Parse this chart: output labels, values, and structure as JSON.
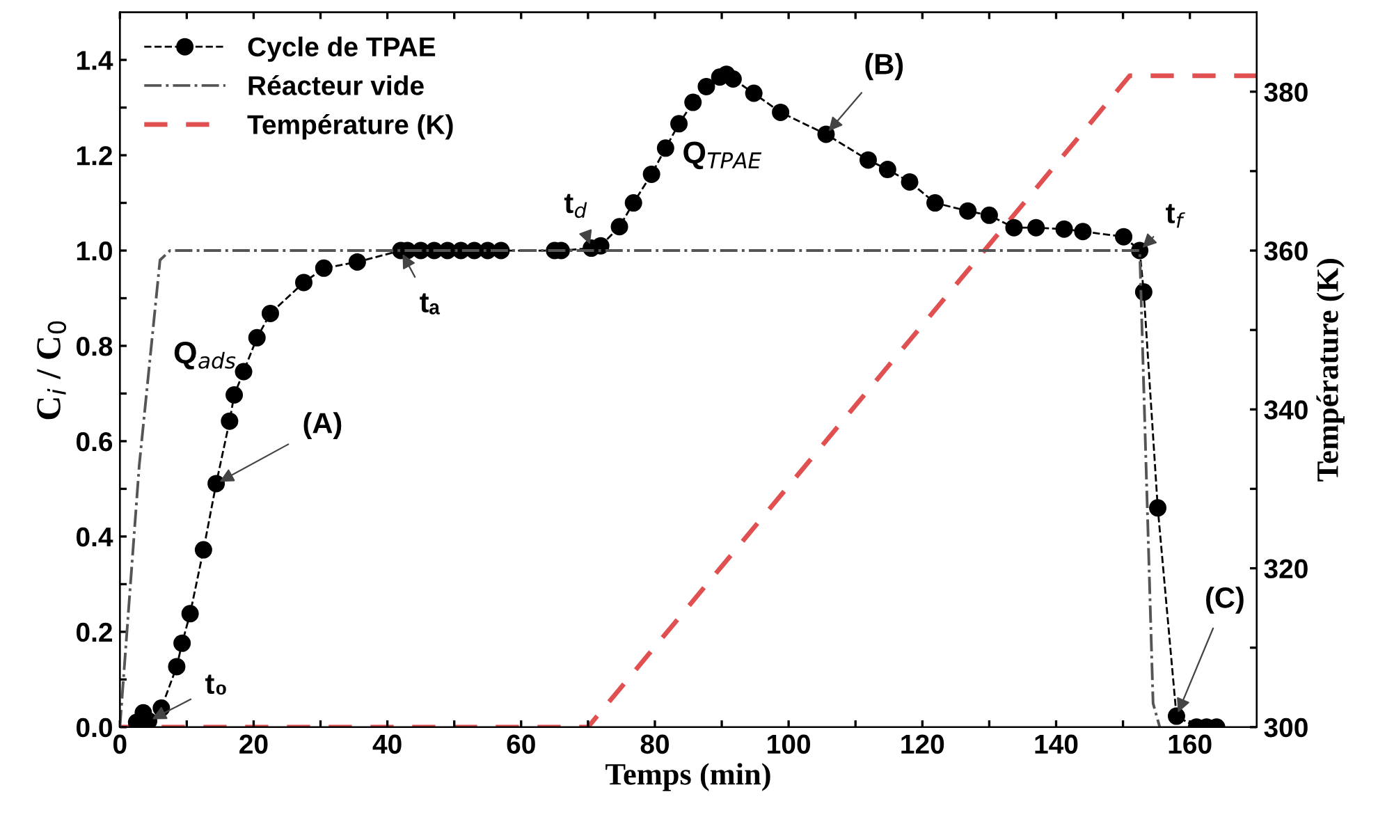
{
  "chart_data": {
    "type": "line",
    "xlabel": "Temps (min)",
    "ylabel": "C$_{i}$ / C$_{0}$",
    "y2label": "Température (K)",
    "xlim": [
      0,
      170
    ],
    "ylim": [
      0,
      1.5
    ],
    "y2lim": [
      300,
      390
    ],
    "xticks": [
      0,
      {
        "value": 10,
        "label": null
      },
      20,
      {
        "value": 30,
        "label": null
      },
      40,
      {
        "value": 50,
        "label": null
      },
      60,
      {
        "value": 70,
        "label": null
      },
      80,
      {
        "value": 90,
        "label": null
      },
      100,
      {
        "value": 110,
        "label": null
      },
      120,
      {
        "value": 130,
        "label": null
      },
      140,
      {
        "value": 150,
        "label": null
      },
      160
    ],
    "yticks": [
      {
        "value": 0,
        "label": "0.0"
      },
      {
        "value": 0.1,
        "label": null
      },
      {
        "value": 0.2,
        "label": "0.2"
      },
      {
        "value": 0.3,
        "label": null
      },
      {
        "value": 0.4,
        "label": "0.4"
      },
      {
        "value": 0.5,
        "label": null
      },
      {
        "value": 0.6,
        "label": "0.6"
      },
      {
        "value": 0.7,
        "label": null
      },
      {
        "value": 0.8,
        "label": "0.8"
      },
      {
        "value": 0.9,
        "label": null
      },
      {
        "value": 1.0,
        "label": "1.0"
      },
      {
        "value": 1.1,
        "label": null
      },
      {
        "value": 1.2,
        "label": "1.2"
      },
      {
        "value": 1.3,
        "label": null
      },
      {
        "value": 1.4,
        "label": "1.4"
      }
    ],
    "y2ticks": [
      300,
      {
        "value": 310,
        "label": null
      },
      320,
      {
        "value": 330,
        "label": null
      },
      340,
      {
        "value": 350,
        "label": null
      },
      360,
      {
        "value": 370,
        "label": null
      },
      380
    ],
    "legend": "top left",
    "grid": false,
    "series": [
      {
        "name": "Cycle de TPAE",
        "color": "#000000",
        "marker": "circle",
        "line_style": "dashed",
        "x": [
          2.5,
          3.5,
          4.3,
          6.2,
          8.5,
          9.3,
          10.5,
          12.5,
          14.4,
          16.4,
          17.1,
          18.5,
          20.5,
          22.5,
          27.5,
          30.5,
          35.5,
          42,
          43,
          45,
          47,
          49,
          51,
          53,
          55,
          57,
          65,
          66,
          70.5,
          71.9,
          74.7,
          76.8,
          79.5,
          81.6,
          83.6,
          85.7,
          87.7,
          89.7,
          90.7,
          91.7,
          94.8,
          98.8,
          105.6,
          111.9,
          114.8,
          118.1,
          121.9,
          126.8,
          130,
          133.7,
          137,
          141.2,
          144,
          150.1,
          152.5,
          153.1,
          155.2,
          158,
          161,
          162.5,
          164
        ],
        "values": [
          0.01,
          0.03,
          0.013,
          0.04,
          0.127,
          0.176,
          0.238,
          0.372,
          0.511,
          0.642,
          0.697,
          0.746,
          0.817,
          0.868,
          0.933,
          0.963,
          0.976,
          1.0,
          1.0,
          1.0,
          1.0,
          1.0,
          1.0,
          1.0,
          1.0,
          1.0,
          1.0,
          1.0,
          1.005,
          1.01,
          1.05,
          1.1,
          1.16,
          1.215,
          1.266,
          1.311,
          1.344,
          1.364,
          1.37,
          1.36,
          1.33,
          1.29,
          1.244,
          1.19,
          1.17,
          1.144,
          1.1,
          1.083,
          1.074,
          1.048,
          1.048,
          1.045,
          1.04,
          1.029,
          1.0,
          0.913,
          0.46,
          0.023,
          0.0,
          0.0,
          0.0
        ]
      },
      {
        "name": "Réacteur vide",
        "color": "#555555",
        "marker": "none",
        "line_style": "dashdot",
        "x": [
          0,
          2.9,
          6,
          7.5,
          152.5,
          154.5,
          155.5
        ],
        "values": [
          0,
          0.55,
          0.98,
          1.0,
          1.0,
          0.05,
          0.0
        ]
      },
      {
        "name": "Température (K)",
        "color": "#e05050",
        "marker": "none",
        "line_style": "dashed",
        "axis": "y2",
        "x": [
          0,
          70,
          151,
          170
        ],
        "values": [
          300,
          300,
          382,
          382
        ]
      }
    ],
    "annotations": [
      {
        "text": "t₀",
        "x": 4.3,
        "y": 0.013
      },
      {
        "text": "(A)",
        "x": 14.4,
        "y": 0.511
      },
      "Q$_{ads}$",
      {
        "text": "tₐ",
        "x": 42,
        "y": 1.0
      },
      {
        "text": "t$_{d}$",
        "x": 70.5,
        "y": 1.005
      },
      "Q$_{TPAE}$",
      {
        "text": "(B)",
        "x": 105.6,
        "y": 1.244
      },
      {
        "text": "t$_{f}$",
        "x": 152.5,
        "y": 1.0
      },
      {
        "text": "(C)",
        "x": 158,
        "y": 0.023
      }
    ]
  }
}
